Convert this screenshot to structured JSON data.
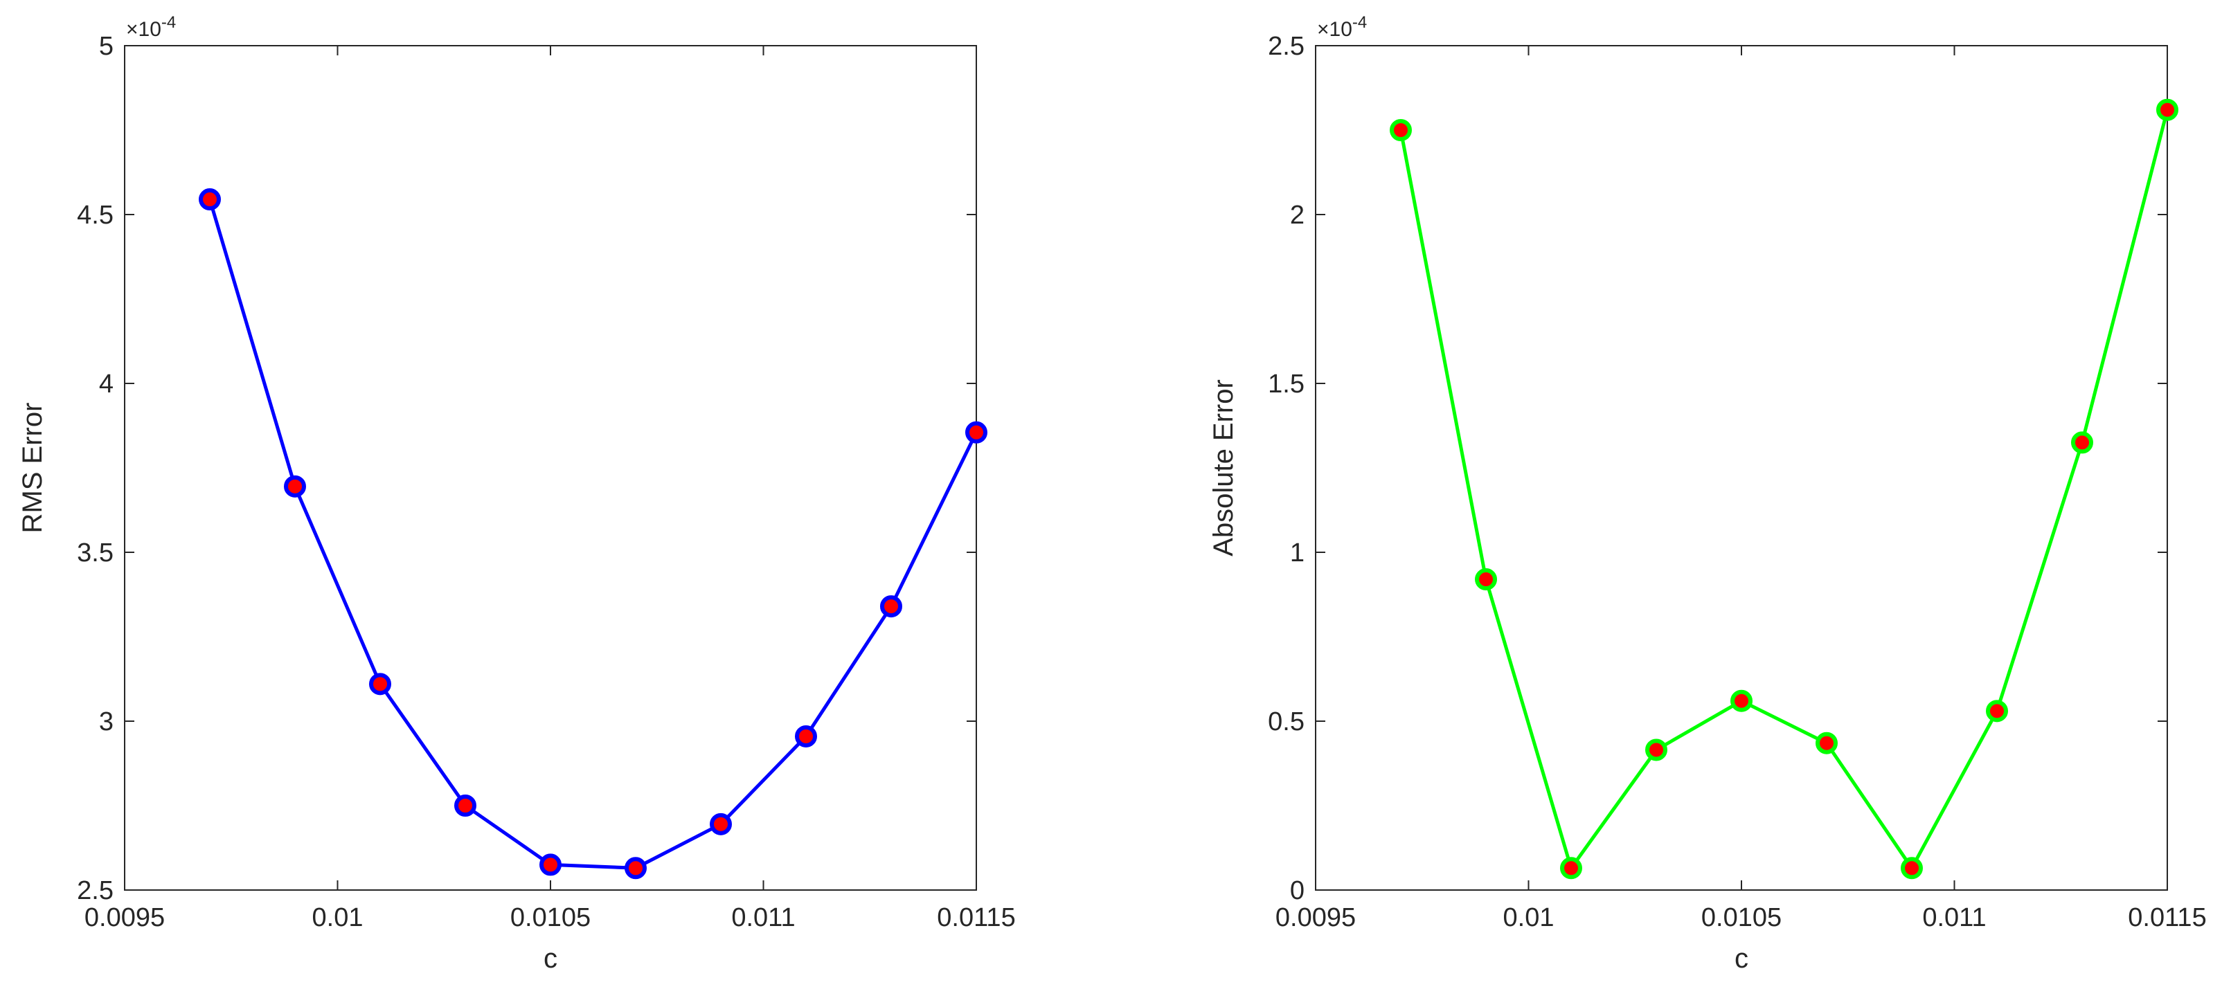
{
  "chart_data": [
    {
      "type": "line",
      "title": "",
      "xlabel": "c",
      "ylabel": "RMS Error",
      "y_exponent_label": "×10",
      "y_exponent_power": "-4",
      "xlim": [
        0.0095,
        0.0115
      ],
      "ylim": [
        2.5,
        5
      ],
      "x_ticks": [
        0.0095,
        0.01,
        0.0105,
        0.011,
        0.0115
      ],
      "x_tick_labels": [
        "0.0095",
        "0.01",
        "0.0105",
        "0.011",
        "0.0115"
      ],
      "y_ticks": [
        2.5,
        3,
        3.5,
        4,
        4.5,
        5
      ],
      "y_tick_labels": [
        "2.5",
        "3",
        "3.5",
        "4",
        "4.5",
        "5"
      ],
      "grid": false,
      "colors": {
        "line": "#0000ff",
        "marker_edge": "#0000ff",
        "marker_fill": "#ff0000",
        "axes": "#262626"
      },
      "series": [
        {
          "x": [
            0.0097,
            0.0099,
            0.0101,
            0.0103,
            0.0105,
            0.0107,
            0.0109,
            0.0111,
            0.0113,
            0.0115
          ],
          "values": [
            4.545,
            3.695,
            3.11,
            2.75,
            2.575,
            2.565,
            2.695,
            2.955,
            3.34,
            3.855
          ]
        }
      ]
    },
    {
      "type": "line",
      "title": "",
      "xlabel": "c",
      "ylabel": "Absolute Error",
      "y_exponent_label": "×10",
      "y_exponent_power": "-4",
      "xlim": [
        0.0095,
        0.0115
      ],
      "ylim": [
        0,
        2.5
      ],
      "x_ticks": [
        0.0095,
        0.01,
        0.0105,
        0.011,
        0.0115
      ],
      "x_tick_labels": [
        "0.0095",
        "0.01",
        "0.0105",
        "0.011",
        "0.0115"
      ],
      "y_ticks": [
        0,
        0.5,
        1,
        1.5,
        2,
        2.5
      ],
      "y_tick_labels": [
        "0",
        "0.5",
        "1",
        "1.5",
        "2",
        "2.5"
      ],
      "grid": false,
      "colors": {
        "line": "#00ff00",
        "marker_edge": "#00ff00",
        "marker_fill": "#ff0000",
        "axes": "#262626"
      },
      "series": [
        {
          "x": [
            0.0097,
            0.0099,
            0.0101,
            0.0103,
            0.0105,
            0.0107,
            0.0109,
            0.0111,
            0.0113,
            0.0115
          ],
          "values": [
            2.25,
            0.92,
            0.065,
            0.415,
            0.56,
            0.435,
            0.065,
            0.53,
            1.325,
            2.31
          ]
        }
      ]
    }
  ]
}
